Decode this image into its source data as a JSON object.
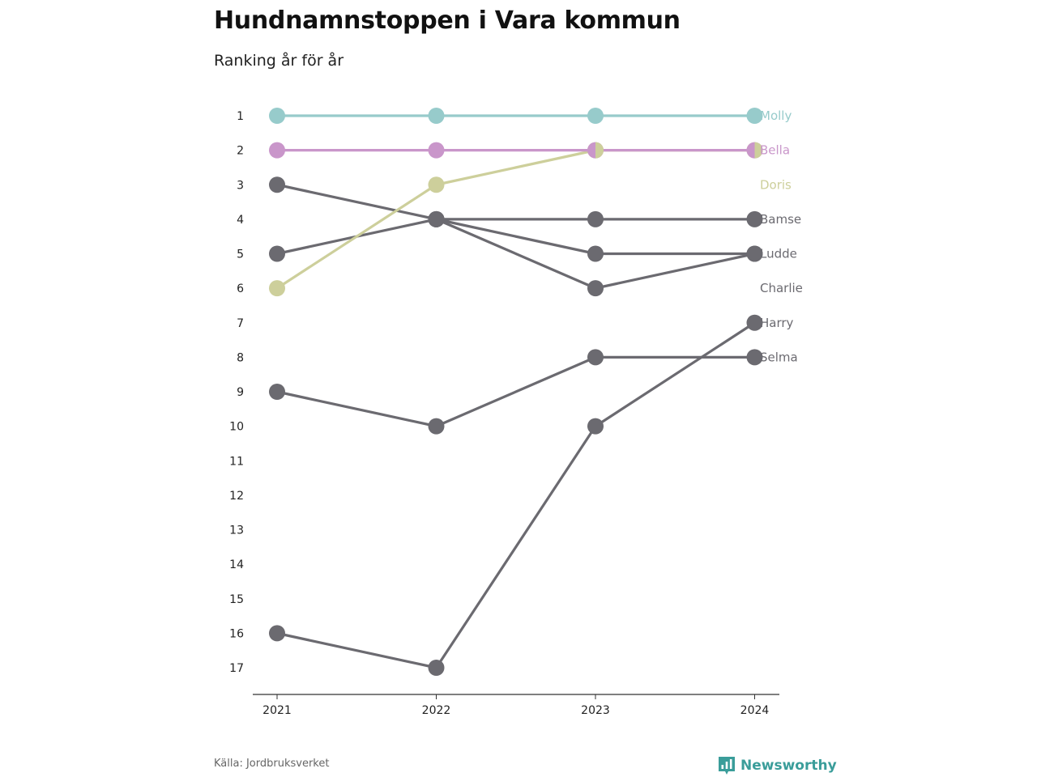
{
  "header": {
    "title": "Hundnamnstoppen i Vara kommun",
    "subtitle": "Ranking år för år"
  },
  "footer": {
    "source": "Källa: Jordbruksverket",
    "brand": "Newsworthy"
  },
  "colors": {
    "molly": "#97cbcb",
    "bella": "#c996ca",
    "doris": "#cdcf9b",
    "gray": "#6b6a70",
    "axis": "#333333",
    "brand": "#3a9d9a"
  },
  "chart_data": {
    "type": "line",
    "title": "Hundnamnstoppen i Vara kommun",
    "subtitle": "Ranking år för år",
    "x": [
      "2021",
      "2022",
      "2023",
      "2024"
    ],
    "y_ticks": [
      1,
      2,
      3,
      4,
      5,
      6,
      7,
      8,
      9,
      10,
      11,
      12,
      13,
      14,
      15,
      16,
      17
    ],
    "ylim": [
      1,
      17
    ],
    "y_reversed": true,
    "grid": false,
    "series": [
      {
        "name": "Molly",
        "values": [
          1,
          1,
          1,
          1
        ],
        "color": "#97cbcb"
      },
      {
        "name": "Bella",
        "values": [
          2,
          2,
          2,
          2
        ],
        "color": "#c996ca"
      },
      {
        "name": "Doris",
        "values": [
          6,
          3,
          2,
          2
        ],
        "color": "#cdcf9b"
      },
      {
        "name": "Bamse",
        "values": [
          5,
          4,
          4,
          4
        ],
        "color": "#6b6a70"
      },
      {
        "name": "Ludde",
        "values": [
          3,
          4,
          5,
          5
        ],
        "color": "#6b6a70"
      },
      {
        "name": "Charlie",
        "values": [
          null,
          4,
          6,
          5
        ],
        "color": "#6b6a70"
      },
      {
        "name": "Harry",
        "values": [
          16,
          17,
          10,
          7
        ],
        "color": "#6b6a70"
      },
      {
        "name": "Selma",
        "values": [
          9,
          10,
          8,
          8
        ],
        "color": "#6b6a70"
      }
    ]
  }
}
